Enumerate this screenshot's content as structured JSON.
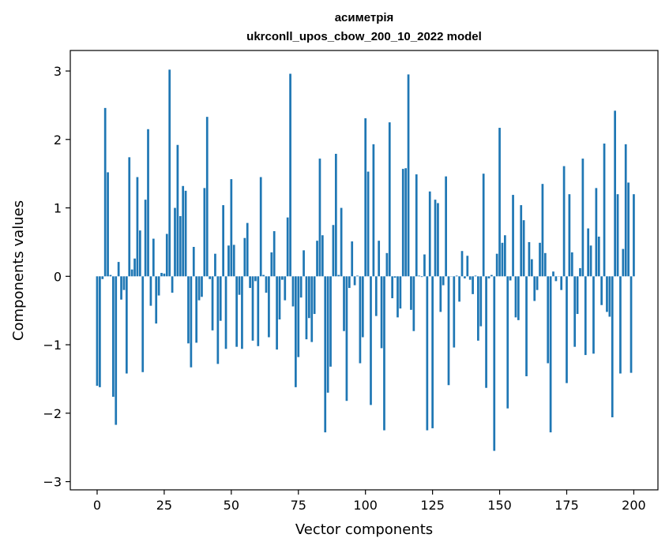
{
  "chart_data": {
    "type": "bar",
    "title_line1": "асиметрія",
    "title_line2": "ukrconll_upos_cbow_200_10_2022 model",
    "xlabel": "Vector components",
    "ylabel": "Components values",
    "xlim": [
      -10,
      209
    ],
    "ylim": [
      -3.12,
      3.3
    ],
    "xticks": [
      0,
      25,
      50,
      75,
      100,
      125,
      150,
      175,
      200
    ],
    "yticks": [
      -3,
      -2,
      -1,
      0,
      1,
      2,
      3
    ],
    "ytick_labels": [
      "−3",
      "−2",
      "−1",
      "0",
      "1",
      "2",
      "3"
    ],
    "bar_color": "#1f77b4",
    "grid": false,
    "values": [
      -1.6,
      -1.62,
      -0.04,
      2.46,
      1.52,
      0.02,
      -1.76,
      -2.17,
      0.21,
      -0.34,
      -0.2,
      -1.42,
      1.74,
      0.1,
      0.26,
      1.45,
      0.67,
      -1.4,
      1.12,
      2.15,
      -0.43,
      0.55,
      -0.69,
      -0.28,
      0.05,
      0.04,
      0.62,
      3.02,
      -0.24,
      1.0,
      1.92,
      0.88,
      1.32,
      1.25,
      -0.98,
      -1.33,
      0.43,
      -0.97,
      -0.35,
      -0.3,
      1.29,
      2.33,
      -0.04,
      -0.79,
      0.33,
      -1.28,
      -0.65,
      1.04,
      -1.06,
      0.45,
      1.42,
      0.46,
      -1.03,
      -0.27,
      -1.06,
      0.56,
      0.78,
      -0.17,
      -0.94,
      -0.07,
      -1.02,
      1.45,
      0.02,
      -0.24,
      -0.89,
      0.35,
      0.66,
      -1.07,
      -0.63,
      -0.05,
      -0.35,
      0.86,
      2.96,
      -0.44,
      -1.62,
      -1.18,
      -0.31,
      0.38,
      -0.92,
      -0.61,
      -0.96,
      -0.55,
      0.52,
      1.72,
      0.6,
      -2.28,
      -1.7,
      -1.32,
      0.75,
      1.79,
      0.02,
      1.0,
      -0.8,
      -1.82,
      -0.17,
      0.51,
      -0.13,
      0.01,
      -1.27,
      -0.89,
      2.31,
      1.53,
      -1.88,
      1.93,
      -0.58,
      0.52,
      -1.05,
      -2.25,
      0.34,
      2.25,
      -0.32,
      -0.02,
      -0.6,
      -0.47,
      1.57,
      1.58,
      2.95,
      -0.49,
      -0.8,
      1.49,
      0.01,
      -0.01,
      0.32,
      -2.25,
      1.24,
      -2.22,
      1.12,
      1.07,
      -0.52,
      -0.13,
      1.46,
      -1.59,
      0.0,
      -1.04,
      0.01,
      -0.37,
      0.37,
      -0.03,
      0.3,
      -0.05,
      -0.26,
      0.01,
      -0.94,
      -0.73,
      1.5,
      -1.63,
      -0.03,
      0.02,
      -2.55,
      0.33,
      2.17,
      0.49,
      0.6,
      -1.93,
      -0.06,
      1.19,
      -0.6,
      -0.64,
      1.04,
      0.82,
      -1.46,
      0.5,
      0.25,
      -0.36,
      -0.2,
      0.49,
      1.35,
      0.34,
      -1.27,
      -2.28,
      0.07,
      -0.07,
      0.0,
      -0.2,
      1.61,
      -1.56,
      1.2,
      0.35,
      -1.03,
      -0.55,
      0.12,
      1.72,
      -1.15,
      0.7,
      0.45,
      -1.13,
      1.29,
      0.58,
      -0.42,
      1.94,
      -0.52,
      -0.59,
      -2.06,
      2.42,
      1.2,
      -1.42,
      0.4,
      1.93,
      1.37,
      -1.41,
      1.2
    ]
  }
}
